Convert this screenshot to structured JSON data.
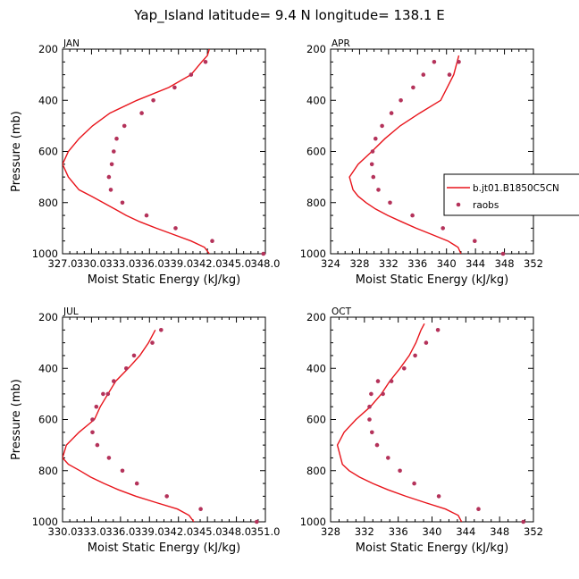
{
  "page": {
    "title": "Yap_Island  latitude= 9.4 N longitude= 138.1 E"
  },
  "legend": {
    "model_label": "b.jt01.B1850C5CN",
    "obs_label": "raobs"
  },
  "colors": {
    "model_line": "#e8141b",
    "obs_marker": "#b4325a",
    "axes": "#000000"
  },
  "chart_data": [
    {
      "type": "line",
      "panel": "JAN",
      "xlabel": "Moist Static Energy (kJ/kg)",
      "ylabel": "Pressure (mb)",
      "xlim": [
        327.0,
        348.0
      ],
      "ylim": [
        1000,
        200
      ],
      "y_inverted": true,
      "xticks": [
        327.0,
        330.0,
        333.0,
        336.0,
        339.0,
        342.0,
        345.0,
        348.0
      ],
      "xtick_labels": [
        "327.0",
        "330.0",
        "333.0",
        "336.0",
        "339.0",
        "342.0",
        "345.0",
        "348.0"
      ],
      "yticks": [
        200,
        400,
        600,
        800,
        1000
      ],
      "ytick_labels": [
        "200",
        "400",
        "600",
        "800",
        "1000"
      ],
      "series": [
        {
          "name": "b.jt01.B1850C5CN",
          "kind": "line",
          "x": [
            342.2,
            341.7,
            340.3,
            338.5,
            336.7,
            335.0,
            333.6,
            332.4,
            331.2,
            330.0,
            328.7,
            327.6,
            327.0,
            327.6,
            328.7,
            330.1,
            331.9,
            334.7,
            338.0,
            340.3,
            341.4,
            342.0,
            342.2
          ],
          "y": [
            1000,
            975,
            950,
            925,
            900,
            875,
            850,
            825,
            800,
            775,
            750,
            700,
            650,
            600,
            550,
            500,
            450,
            400,
            350,
            300,
            250,
            225,
            200
          ]
        },
        {
          "name": "raobs",
          "kind": "scatter",
          "x": [
            347.8,
            342.5,
            338.7,
            335.7,
            333.2,
            332.0,
            331.8,
            332.1,
            332.3,
            332.6,
            333.4,
            335.2,
            336.4,
            338.6,
            340.3,
            341.8
          ],
          "y": [
            1000,
            950,
            900,
            850,
            800,
            750,
            700,
            650,
            600,
            550,
            500,
            450,
            400,
            350,
            300,
            250
          ]
        }
      ]
    },
    {
      "type": "line",
      "panel": "APR",
      "xlabel": "Moist Static Energy (kJ/kg)",
      "ylabel": "",
      "xlim": [
        324,
        352
      ],
      "ylim": [
        1000,
        200
      ],
      "y_inverted": true,
      "xticks": [
        324,
        328,
        332,
        336,
        340,
        344,
        348,
        352
      ],
      "xtick_labels": [
        "324",
        "328",
        "332",
        "336",
        "340",
        "344",
        "348",
        "352"
      ],
      "yticks": [
        200,
        400,
        600,
        800,
        1000
      ],
      "ytick_labels": [
        "200",
        "400",
        "600",
        "800",
        "1000"
      ],
      "series": [
        {
          "name": "b.jt01.B1850C5CN",
          "kind": "line",
          "x": [
            342.0,
            341.6,
            340.2,
            338.0,
            335.8,
            333.8,
            331.9,
            330.2,
            328.9,
            327.8,
            327.1,
            326.6,
            327.8,
            329.7,
            331.5,
            333.6,
            336.3,
            339.2,
            341.0,
            341.7
          ],
          "y": [
            1000,
            975,
            950,
            925,
            900,
            875,
            850,
            825,
            800,
            775,
            750,
            700,
            650,
            600,
            550,
            500,
            450,
            400,
            300,
            225
          ]
        },
        {
          "name": "raobs",
          "kind": "scatter",
          "x": [
            347.8,
            343.9,
            339.5,
            335.3,
            332.2,
            330.6,
            329.9,
            329.7,
            329.8,
            330.2,
            331.1,
            332.4,
            333.7,
            335.4,
            336.8,
            338.3,
            340.4,
            341.7
          ],
          "y": [
            1000,
            950,
            900,
            850,
            800,
            750,
            700,
            650,
            600,
            550,
            500,
            450,
            400,
            350,
            300,
            250,
            300,
            250
          ]
        }
      ]
    },
    {
      "type": "line",
      "panel": "JUL",
      "xlabel": "Moist Static Energy (kJ/kg)",
      "ylabel": "Pressure (mb)",
      "xlim": [
        330.0,
        351.0
      ],
      "ylim": [
        1000,
        200
      ],
      "y_inverted": true,
      "xticks": [
        330.0,
        333.0,
        336.0,
        339.0,
        342.0,
        345.0,
        348.0,
        351.0
      ],
      "xtick_labels": [
        "330.0",
        "333.0",
        "336.0",
        "339.0",
        "342.0",
        "345.0",
        "348.0",
        "351.0"
      ],
      "yticks": [
        200,
        400,
        600,
        800,
        1000
      ],
      "ytick_labels": [
        "200",
        "400",
        "600",
        "800",
        "1000"
      ],
      "series": [
        {
          "name": "b.jt01.B1850C5CN",
          "kind": "line",
          "x": [
            343.6,
            343.1,
            341.9,
            339.7,
            337.6,
            335.8,
            334.3,
            332.9,
            331.8,
            330.6,
            330.0,
            330.4,
            331.7,
            333.3,
            333.9,
            335.5,
            336.8,
            338.0,
            338.9,
            339.6
          ],
          "y": [
            1000,
            975,
            950,
            925,
            900,
            875,
            850,
            825,
            800,
            775,
            750,
            700,
            650,
            600,
            550,
            450,
            400,
            350,
            300,
            250
          ]
        },
        {
          "name": "raobs",
          "kind": "scatter",
          "x": [
            350.1,
            344.3,
            340.8,
            337.7,
            336.2,
            334.8,
            333.6,
            333.1,
            333.1,
            333.5,
            334.2,
            334.7,
            335.3,
            336.6,
            337.4,
            339.3,
            340.2
          ],
          "y": [
            1000,
            950,
            900,
            850,
            800,
            750,
            700,
            650,
            600,
            550,
            500,
            500,
            450,
            400,
            350,
            300,
            250
          ]
        }
      ]
    },
    {
      "type": "line",
      "panel": "OCT",
      "xlabel": "Moist Static Energy (kJ/kg)",
      "ylabel": "",
      "xlim": [
        328,
        352
      ],
      "ylim": [
        1000,
        200
      ],
      "y_inverted": true,
      "xticks": [
        328,
        332,
        336,
        340,
        344,
        348,
        352
      ],
      "xtick_labels": [
        "328",
        "332",
        "336",
        "340",
        "344",
        "348",
        "352"
      ],
      "yticks": [
        200,
        400,
        600,
        800,
        1000
      ],
      "ytick_labels": [
        "200",
        "400",
        "600",
        "800",
        "1000"
      ],
      "series": [
        {
          "name": "b.jt01.B1850C5CN",
          "kind": "line",
          "x": [
            343.5,
            343.1,
            341.6,
            339.2,
            336.9,
            334.8,
            333.0,
            331.4,
            330.2,
            329.4,
            328.8,
            329.6,
            331.0,
            332.7,
            334.0,
            335.0,
            336.2,
            337.3,
            338.1,
            338.7,
            339.1
          ],
          "y": [
            1000,
            975,
            950,
            925,
            900,
            875,
            850,
            825,
            800,
            775,
            700,
            650,
            600,
            550,
            500,
            450,
            400,
            350,
            300,
            250,
            225
          ]
        },
        {
          "name": "raobs",
          "kind": "scatter",
          "x": [
            350.8,
            345.5,
            340.8,
            337.9,
            336.2,
            334.8,
            333.5,
            332.9,
            332.6,
            332.6,
            332.8,
            333.6,
            334.2,
            335.2,
            336.7,
            338.0,
            339.3,
            340.7
          ],
          "y": [
            1000,
            950,
            900,
            850,
            800,
            750,
            700,
            650,
            600,
            550,
            500,
            450,
            500,
            450,
            400,
            350,
            300,
            250
          ]
        }
      ]
    }
  ]
}
